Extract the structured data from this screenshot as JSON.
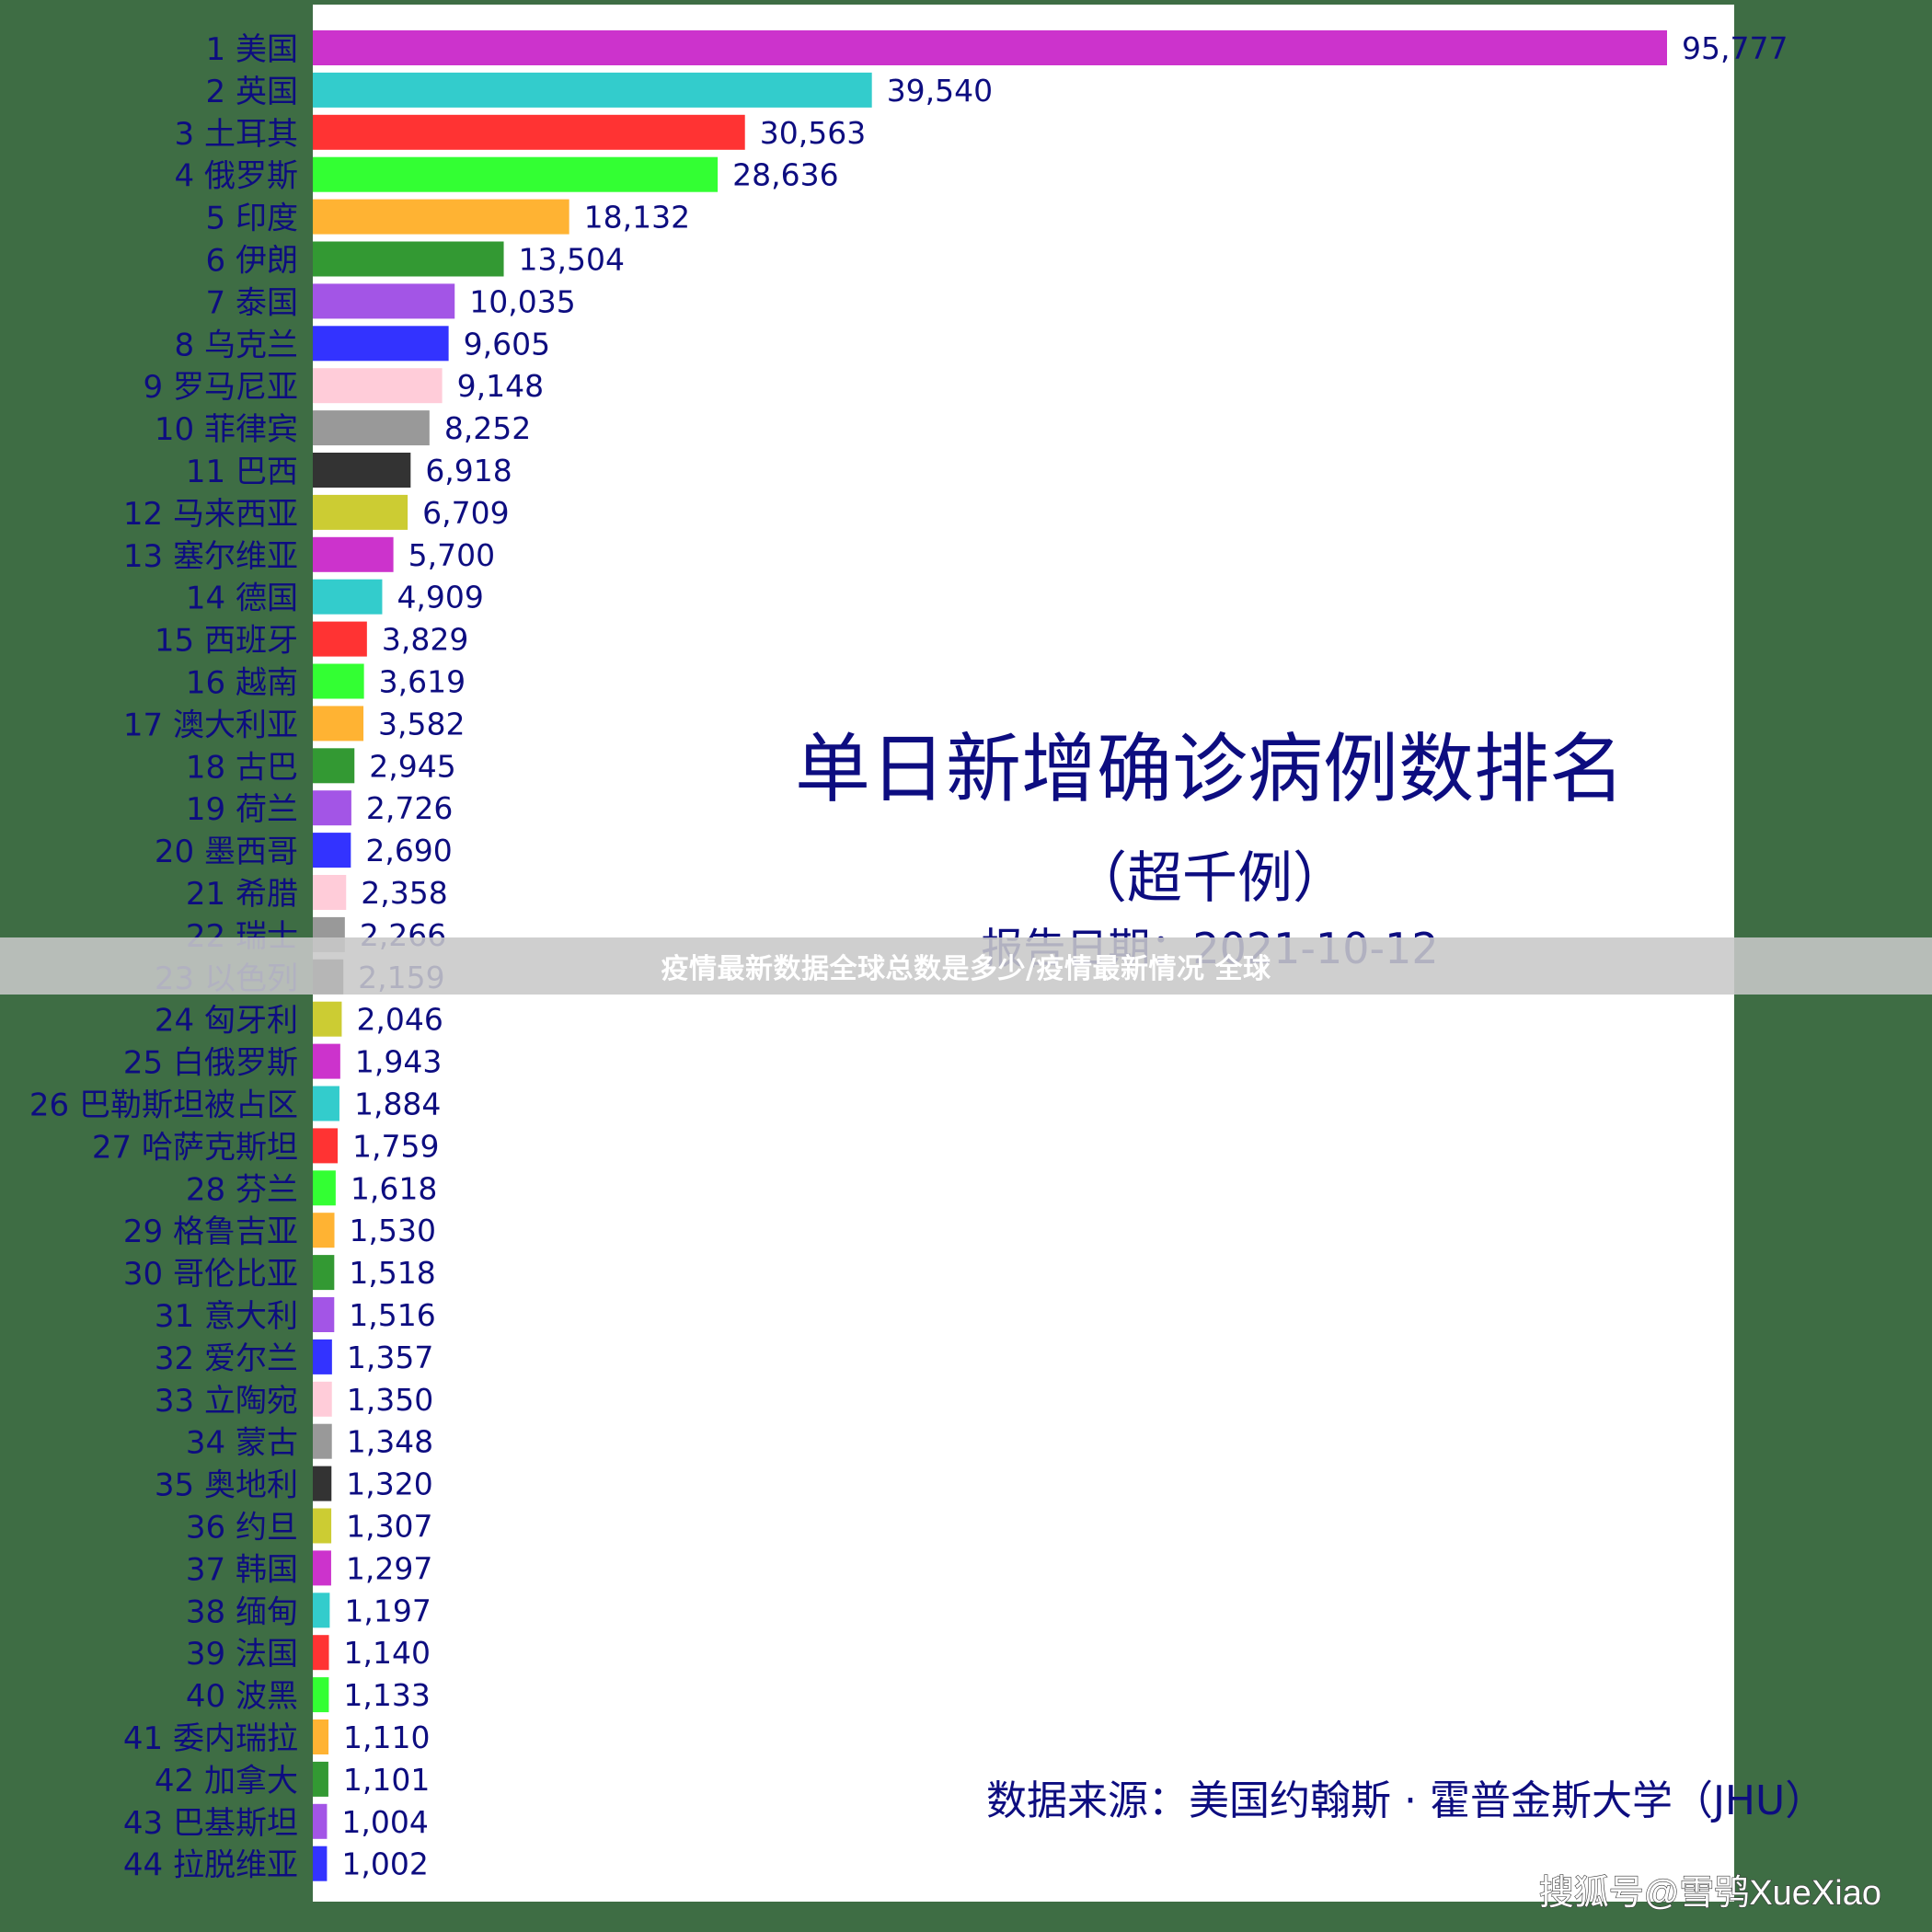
{
  "banner": {
    "text": "疫情最新数据全球总数是多少/疫情最新情况 全球"
  },
  "watermark": "搜狐号@雪鸮XueXiao",
  "chart_data": {
    "type": "bar",
    "orientation": "horizontal",
    "title": "单日新增确诊病例数排名",
    "subtitle": "（超千例）",
    "report_date": "报告日期：2021-10-12",
    "source": "数据来源：美国约翰斯 · 霍普金斯大学（JHU）",
    "xlabel": "",
    "ylabel": "",
    "xlim": [
      0,
      98000
    ],
    "grid": false,
    "value_labels": [
      "95,777",
      "39,540",
      "30,563",
      "28,636",
      "18,132",
      "13,504",
      "10,035",
      "9,605",
      "9,148",
      "8,252",
      "6,918",
      "6,709",
      "5,700",
      "4,909",
      "3,829",
      "3,619",
      "3,582",
      "2,945",
      "2,726",
      "2,690",
      "2,358",
      "2,266",
      "2,159",
      "2,046",
      "1,943",
      "1,884",
      "1,759",
      "1,618",
      "1,530",
      "1,518",
      "1,516",
      "1,357",
      "1,350",
      "1,348",
      "1,320",
      "1,307",
      "1,297",
      "1,197",
      "1,140",
      "1,133",
      "1,110",
      "1,101",
      "1,004",
      "1,002"
    ],
    "categories": [
      "1 美国",
      "2 英国",
      "3 土耳其",
      "4 俄罗斯",
      "5 印度",
      "6 伊朗",
      "7 泰国",
      "8 乌克兰",
      "9 罗马尼亚",
      "10 菲律宾",
      "11 巴西",
      "12 马来西亚",
      "13 塞尔维亚",
      "14 德国",
      "15 西班牙",
      "16 越南",
      "17 澳大利亚",
      "18 古巴",
      "19 荷兰",
      "20 墨西哥",
      "21 希腊",
      "22 瑞士",
      "23 以色列",
      "24 匈牙利",
      "25 白俄罗斯",
      "26 巴勒斯坦被占区",
      "27 哈萨克斯坦",
      "28 芬兰",
      "29 格鲁吉亚",
      "30 哥伦比亚",
      "31 意大利",
      "32 爱尔兰",
      "33 立陶宛",
      "34 蒙古",
      "35 奥地利",
      "36 约旦",
      "37 韩国",
      "38 缅甸",
      "39 法国",
      "40 波黑",
      "41 委内瑞拉",
      "42 加拿大",
      "43 巴基斯坦",
      "44 拉脱维亚"
    ],
    "values": [
      95777,
      39540,
      30563,
      28636,
      18132,
      13504,
      10035,
      9605,
      9148,
      8252,
      6918,
      6709,
      5700,
      4909,
      3829,
      3619,
      3582,
      2945,
      2726,
      2690,
      2358,
      2266,
      2159,
      2046,
      1943,
      1884,
      1759,
      1618,
      1530,
      1518,
      1516,
      1357,
      1350,
      1348,
      1320,
      1307,
      1297,
      1197,
      1140,
      1133,
      1110,
      1101,
      1004,
      1002
    ],
    "colors": [
      "#cc33cc",
      "#33cccc",
      "#ff3333",
      "#33ff33",
      "#ffb333",
      "#339933",
      "#a355e6",
      "#3333ff",
      "#ffccd9",
      "#999999",
      "#333333",
      "#cccc33"
    ],
    "text_color": "#0d0d80",
    "plot_background": "#ffffff"
  }
}
